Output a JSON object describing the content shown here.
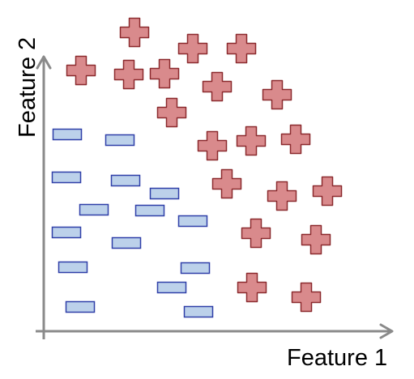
{
  "axes": {
    "x_label": "Feature 1",
    "y_label": "Feature 2",
    "axis_color": "#8a8a8a"
  },
  "classes": {
    "positive": {
      "marker": "plus-sign",
      "fill": "#d98a8c",
      "stroke": "#8b2a2e"
    },
    "negative": {
      "marker": "minus-sign",
      "fill": "#bcd1ea",
      "stroke": "#2f3fa8"
    }
  }
}
